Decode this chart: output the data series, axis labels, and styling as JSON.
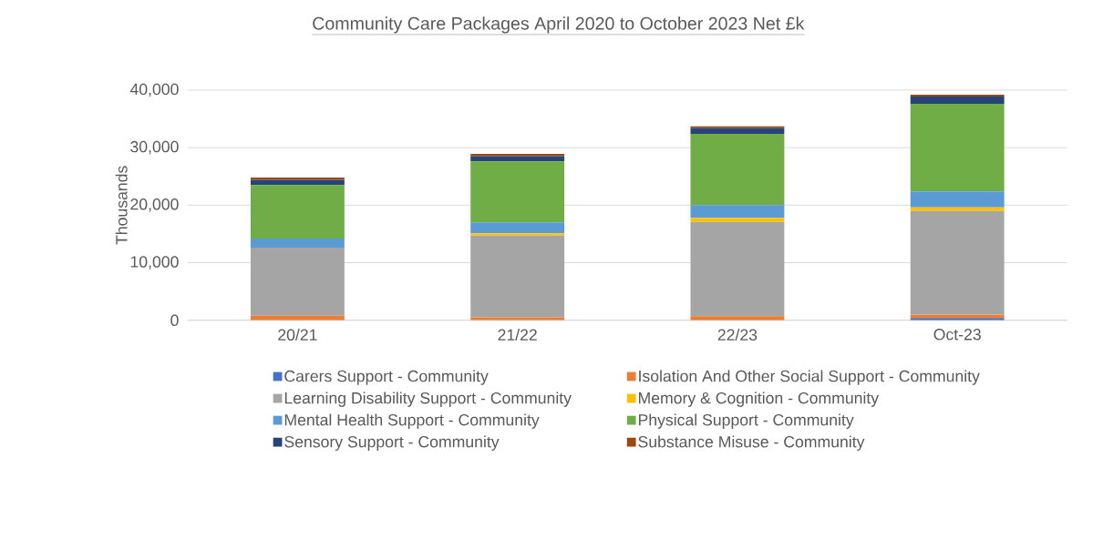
{
  "chart_data": {
    "type": "bar",
    "stacked": true,
    "title": "Community Care Packages April 2020 to October 2023 Net £k",
    "ylabel": "Thousands",
    "categories": [
      "20/21",
      "21/22",
      "22/23",
      "Oct-23"
    ],
    "series": [
      {
        "name": "Carers Support - Community",
        "color": "#4472c4",
        "values": [
          null,
          null,
          null,
          400
        ]
      },
      {
        "name": "Isolation And Other Social Support - Community",
        "color": "#ed7d31",
        "values": [
          800,
          500,
          700,
          600
        ]
      },
      {
        "name": "Learning Disability Support - Community",
        "color": "#a5a5a5",
        "values": [
          11800,
          14200,
          16400,
          18000
        ]
      },
      {
        "name": "Memory & Cognition - Community",
        "color": "#ffc000",
        "values": [
          null,
          400,
          700,
          600
        ]
      },
      {
        "name": "Mental Health Support - Community",
        "color": "#5b9bd5",
        "values": [
          1600,
          1900,
          2200,
          2800
        ]
      },
      {
        "name": "Physical Support - Community",
        "color": "#70ad47",
        "values": [
          9300,
          10600,
          12400,
          15200
        ]
      },
      {
        "name": "Sensory Support - Community",
        "color": "#264478",
        "values": [
          900,
          900,
          1000,
          1300
        ]
      },
      {
        "name": "Substance Misuse - Community",
        "color": "#9e480e",
        "values": [
          400,
          400,
          300,
          300
        ]
      }
    ],
    "ylim": [
      0,
      40000
    ],
    "yticks": [
      {
        "value": 0,
        "label": "0"
      },
      {
        "value": 10000,
        "label": "10,000"
      },
      {
        "value": 20000,
        "label": "20,000"
      },
      {
        "value": 30000,
        "label": "30,000"
      },
      {
        "value": 40000,
        "label": "40,000"
      }
    ],
    "grid": "y",
    "legend": "bottom"
  }
}
